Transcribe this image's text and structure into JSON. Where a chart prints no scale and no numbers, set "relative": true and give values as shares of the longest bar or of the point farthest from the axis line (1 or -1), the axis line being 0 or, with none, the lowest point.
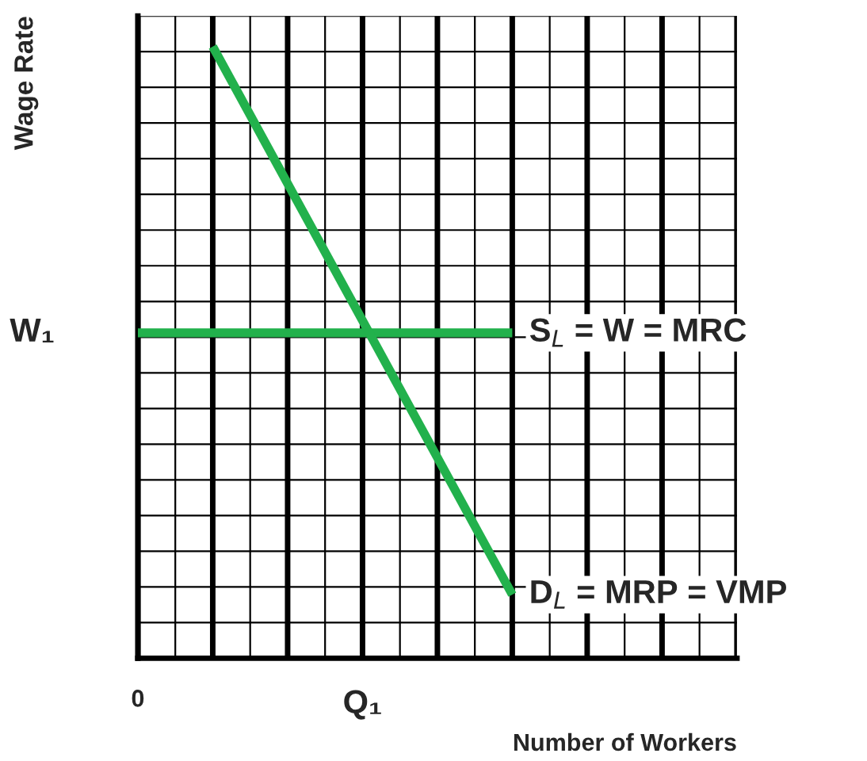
{
  "chart_data": {
    "type": "line",
    "relative": true,
    "xlabel": "Number of Workers",
    "ylabel": "Wage Rate",
    "categories": [
      "0",
      null,
      null,
      null,
      null,
      null,
      "Q₁",
      null,
      null,
      null,
      null,
      null,
      null,
      null,
      null,
      null,
      null
    ],
    "series": [
      {
        "name": "S$_{L}$ = W = MRC",
        "color": "#22b14c",
        "values": [
          0.532,
          null,
          null,
          null,
          null,
          null,
          null,
          null,
          null,
          null,
          0.532,
          null,
          null,
          null,
          null,
          null,
          null
        ]
      },
      {
        "name": "D$_{L}$ = MRP = VMP",
        "color": "#22b14c",
        "values": [
          null,
          null,
          1,
          null,
          null,
          null,
          null,
          null,
          null,
          null,
          0.104,
          null,
          null,
          null,
          null,
          null,
          null
        ]
      }
    ],
    "annotations": [
      {
        "text": "W₁",
        "x": "0",
        "y": 0.532
      }
    ],
    "grid": true,
    "marker": "none",
    "line_style": "solid"
  }
}
